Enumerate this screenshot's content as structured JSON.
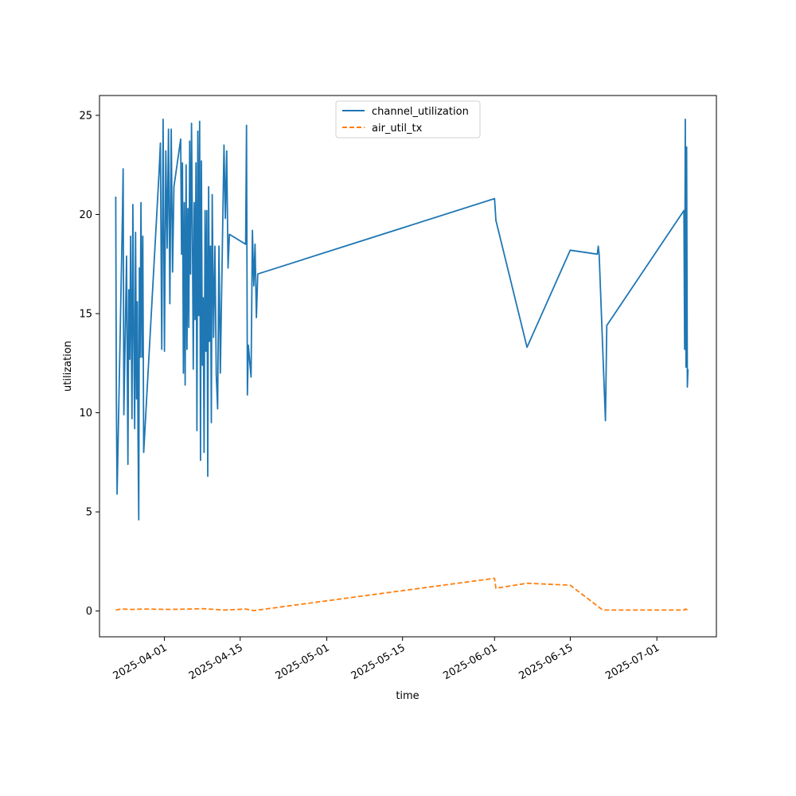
{
  "chart_data": {
    "type": "line",
    "xlabel": "time",
    "ylabel": "utilization",
    "x_type": "date",
    "xlim": [
      "2025-03-20",
      "2025-07-12"
    ],
    "ylim": [
      -1.3,
      26
    ],
    "x_ticks": [
      "2025-04-01",
      "2025-04-15",
      "2025-05-01",
      "2025-05-15",
      "2025-06-01",
      "2025-06-15",
      "2025-07-01"
    ],
    "y_ticks": [
      0,
      5,
      10,
      15,
      20,
      25
    ],
    "grid": false,
    "legend_position": "upper center",
    "series": [
      {
        "name": "channel_utilization",
        "color": "#1f77b4",
        "style": "solid",
        "points": [
          [
            "2025-03-23T00:00",
            20.9
          ],
          [
            "2025-03-23T03:00",
            10.6
          ],
          [
            "2025-03-23T06:00",
            5.9
          ],
          [
            "2025-03-24T06:00",
            20.1
          ],
          [
            "2025-03-24T09:00",
            22.3
          ],
          [
            "2025-03-24T12:00",
            9.9
          ],
          [
            "2025-03-25T00:00",
            17.9
          ],
          [
            "2025-03-25T06:00",
            7.4
          ],
          [
            "2025-03-25T10:00",
            16.2
          ],
          [
            "2025-03-25T14:00",
            12.7
          ],
          [
            "2025-03-25T18:00",
            18.9
          ],
          [
            "2025-03-26T00:00",
            9.7
          ],
          [
            "2025-03-26T04:00",
            20.5
          ],
          [
            "2025-03-26T08:00",
            13.8
          ],
          [
            "2025-03-26T12:00",
            9.2
          ],
          [
            "2025-03-26T16:00",
            19.1
          ],
          [
            "2025-03-26T20:00",
            10.7
          ],
          [
            "2025-03-27T00:00",
            15.6
          ],
          [
            "2025-03-27T03:00",
            8.8
          ],
          [
            "2025-03-27T06:00",
            4.6
          ],
          [
            "2025-03-27T09:00",
            17.3
          ],
          [
            "2025-03-27T12:00",
            12.8
          ],
          [
            "2025-03-27T16:00",
            20.6
          ],
          [
            "2025-03-27T20:00",
            12.8
          ],
          [
            "2025-03-28T00:00",
            18.9
          ],
          [
            "2025-03-28T04:00",
            8.0
          ],
          [
            "2025-03-31T00:00",
            22.1
          ],
          [
            "2025-03-31T06:00",
            23.6
          ],
          [
            "2025-03-31T12:00",
            13.2
          ],
          [
            "2025-03-31T18:00",
            24.8
          ],
          [
            "2025-04-01T00:00",
            13.1
          ],
          [
            "2025-04-01T06:00",
            23.2
          ],
          [
            "2025-04-01T12:00",
            18.3
          ],
          [
            "2025-04-01T18:00",
            24.3
          ],
          [
            "2025-04-02T00:00",
            15.5
          ],
          [
            "2025-04-02T06:00",
            24.3
          ],
          [
            "2025-04-02T12:00",
            17.1
          ],
          [
            "2025-04-02T18:00",
            21.4
          ],
          [
            "2025-04-04T00:00",
            23.8
          ],
          [
            "2025-04-04T04:00",
            18.0
          ],
          [
            "2025-04-04T08:00",
            22.6
          ],
          [
            "2025-04-04T12:00",
            12.0
          ],
          [
            "2025-04-04T16:00",
            20.6
          ],
          [
            "2025-04-04T20:00",
            11.4
          ],
          [
            "2025-04-05T00:00",
            22.5
          ],
          [
            "2025-04-05T04:00",
            13.2
          ],
          [
            "2025-04-05T08:00",
            20.3
          ],
          [
            "2025-04-05T12:00",
            14.3
          ],
          [
            "2025-04-05T16:00",
            23.7
          ],
          [
            "2025-04-05T20:00",
            17.0
          ],
          [
            "2025-04-06T00:00",
            24.6
          ],
          [
            "2025-04-06T04:00",
            19.3
          ],
          [
            "2025-04-06T08:00",
            12.2
          ],
          [
            "2025-04-06T12:00",
            20.6
          ],
          [
            "2025-04-06T16:00",
            14.7
          ],
          [
            "2025-04-06T20:00",
            22.6
          ],
          [
            "2025-04-07T00:00",
            9.1
          ],
          [
            "2025-04-07T04:00",
            24.2
          ],
          [
            "2025-04-07T08:00",
            14.9
          ],
          [
            "2025-04-07T12:00",
            24.7
          ],
          [
            "2025-04-07T16:00",
            7.6
          ],
          [
            "2025-04-07T20:00",
            22.7
          ],
          [
            "2025-04-08T00:00",
            12.4
          ],
          [
            "2025-04-08T04:00",
            15.8
          ],
          [
            "2025-04-08T08:00",
            8.0
          ],
          [
            "2025-04-08T12:00",
            20.2
          ],
          [
            "2025-04-08T16:00",
            13.1
          ],
          [
            "2025-04-08T20:00",
            20.2
          ],
          [
            "2025-04-09T00:00",
            6.8
          ],
          [
            "2025-04-09T04:00",
            21.4
          ],
          [
            "2025-04-09T08:00",
            13.6
          ],
          [
            "2025-04-09T12:00",
            18.4
          ],
          [
            "2025-04-09T16:00",
            9.5
          ],
          [
            "2025-04-09T20:00",
            21.0
          ],
          [
            "2025-04-10T02:00",
            13.8
          ],
          [
            "2025-04-10T08:00",
            18.4
          ],
          [
            "2025-04-10T14:00",
            11.9
          ],
          [
            "2025-04-10T20:00",
            10.2
          ],
          [
            "2025-04-11T02:00",
            18.4
          ],
          [
            "2025-04-11T08:00",
            12.0
          ],
          [
            "2025-04-12T00:00",
            23.5
          ],
          [
            "2025-04-12T06:00",
            19.8
          ],
          [
            "2025-04-12T12:00",
            23.2
          ],
          [
            "2025-04-12T18:00",
            17.3
          ],
          [
            "2025-04-13T00:00",
            19.0
          ],
          [
            "2025-04-16T00:00",
            18.5
          ],
          [
            "2025-04-16T04:00",
            24.5
          ],
          [
            "2025-04-16T08:00",
            10.9
          ],
          [
            "2025-04-16T12:00",
            13.4
          ],
          [
            "2025-04-17T00:00",
            11.8
          ],
          [
            "2025-04-17T06:00",
            19.2
          ],
          [
            "2025-04-17T12:00",
            16.4
          ],
          [
            "2025-04-17T18:00",
            18.5
          ],
          [
            "2025-04-18T00:00",
            14.8
          ],
          [
            "2025-04-18T06:00",
            17.0
          ],
          [
            "2025-06-01T00:00",
            20.8
          ],
          [
            "2025-06-01T06:00",
            19.7
          ],
          [
            "2025-06-07T00:00",
            13.3
          ],
          [
            "2025-06-15T00:00",
            18.2
          ],
          [
            "2025-06-20T00:00",
            18.0
          ],
          [
            "2025-06-20T04:00",
            18.4
          ],
          [
            "2025-06-20T08:00",
            18.0
          ],
          [
            "2025-06-21T12:00",
            9.6
          ],
          [
            "2025-06-21T18:00",
            14.4
          ],
          [
            "2025-07-06T00:00",
            20.2
          ],
          [
            "2025-07-06T03:00",
            13.2
          ],
          [
            "2025-07-06T06:00",
            24.8
          ],
          [
            "2025-07-06T09:00",
            12.3
          ],
          [
            "2025-07-06T12:00",
            23.4
          ],
          [
            "2025-07-06T15:00",
            11.3
          ],
          [
            "2025-07-06T18:00",
            12.2
          ]
        ]
      },
      {
        "name": "air_util_tx",
        "color": "#ff7f0e",
        "style": "dashed",
        "points": [
          [
            "2025-03-23T00:00",
            0.05
          ],
          [
            "2025-03-24T00:00",
            0.1
          ],
          [
            "2025-03-26T00:00",
            0.08
          ],
          [
            "2025-03-28T00:00",
            0.1
          ],
          [
            "2025-04-02T00:00",
            0.08
          ],
          [
            "2025-04-06T00:00",
            0.1
          ],
          [
            "2025-04-08T00:00",
            0.12
          ],
          [
            "2025-04-12T00:00",
            0.05
          ],
          [
            "2025-04-16T00:00",
            0.1
          ],
          [
            "2025-04-17T12:00",
            0.02
          ],
          [
            "2025-06-01T00:00",
            1.65
          ],
          [
            "2025-06-01T06:00",
            1.15
          ],
          [
            "2025-06-07T00:00",
            1.4
          ],
          [
            "2025-06-15T00:00",
            1.3
          ],
          [
            "2025-06-21T00:00",
            0.05
          ],
          [
            "2025-07-06T00:00",
            0.05
          ],
          [
            "2025-07-06T06:00",
            0.1
          ],
          [
            "2025-07-06T18:00",
            0.05
          ]
        ]
      }
    ]
  }
}
